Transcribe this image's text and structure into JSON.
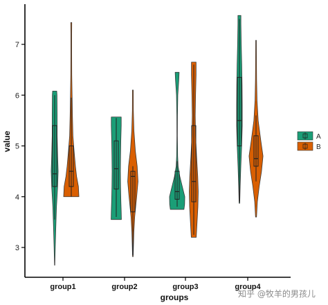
{
  "chart_data": {
    "type": "violin",
    "title": "",
    "xlabel": "groups",
    "ylabel": "value",
    "ylim": [
      2.6,
      7.65
    ],
    "yticks": [
      3,
      4,
      5,
      6,
      7
    ],
    "categories": [
      "group1",
      "group2",
      "group3",
      "group4"
    ],
    "legend": {
      "placement": "right",
      "entries": [
        "A",
        "B"
      ]
    },
    "grid": false,
    "colors": {
      "A": "#1b9e77",
      "B": "#d95f02"
    },
    "series": [
      {
        "name": "A",
        "violins": [
          {
            "min": 2.65,
            "max": 6.08,
            "q1": 4.2,
            "median": 4.45,
            "q3": 5.4,
            "whisker_low": 3.55,
            "whisker_high": 6.0,
            "density": [
              [
                2.65,
                0.02
              ],
              [
                3.0,
                0.07
              ],
              [
                3.4,
                0.14
              ],
              [
                3.8,
                0.22
              ],
              [
                4.2,
                0.36
              ],
              [
                4.5,
                0.42
              ],
              [
                4.8,
                0.36
              ],
              [
                5.2,
                0.3
              ],
              [
                5.6,
                0.3
              ],
              [
                6.0,
                0.28
              ],
              [
                6.08,
                0.25
              ]
            ]
          },
          {
            "min": 3.55,
            "max": 5.57,
            "q1": 4.15,
            "median": 4.55,
            "q3": 5.1,
            "whisker_low": 3.6,
            "whisker_high": 5.55,
            "density": [
              [
                3.55,
                0.62
              ],
              [
                3.7,
                0.6
              ],
              [
                3.9,
                0.56
              ],
              [
                4.2,
                0.52
              ],
              [
                4.5,
                0.5
              ],
              [
                4.8,
                0.52
              ],
              [
                5.1,
                0.55
              ],
              [
                5.4,
                0.6
              ],
              [
                5.57,
                0.6
              ]
            ]
          },
          {
            "min": 3.75,
            "max": 6.45,
            "q1": 3.95,
            "median": 4.1,
            "q3": 4.5,
            "whisker_low": 3.8,
            "whisker_high": 4.7,
            "density": [
              [
                3.75,
                0.82
              ],
              [
                3.85,
                0.9
              ],
              [
                4.0,
                0.92
              ],
              [
                4.2,
                0.62
              ],
              [
                4.4,
                0.32
              ],
              [
                4.6,
                0.12
              ],
              [
                4.8,
                0.06
              ],
              [
                5.2,
                0.03
              ],
              [
                5.6,
                0.04
              ],
              [
                6.0,
                0.08
              ],
              [
                6.3,
                0.2
              ],
              [
                6.45,
                0.24
              ]
            ]
          },
          {
            "min": 3.87,
            "max": 7.57,
            "q1": 5.0,
            "median": 5.5,
            "q3": 6.35,
            "whisker_low": 3.9,
            "whisker_high": 7.5,
            "density": [
              [
                3.87,
                0.04
              ],
              [
                4.2,
                0.09
              ],
              [
                4.6,
                0.17
              ],
              [
                5.0,
                0.27
              ],
              [
                5.4,
                0.34
              ],
              [
                5.8,
                0.34
              ],
              [
                6.2,
                0.32
              ],
              [
                6.6,
                0.28
              ],
              [
                7.0,
                0.22
              ],
              [
                7.4,
                0.18
              ],
              [
                7.57,
                0.18
              ]
            ]
          }
        ]
      },
      {
        "name": "B",
        "violins": [
          {
            "min": 4.0,
            "max": 7.43,
            "q1": 4.2,
            "median": 4.5,
            "q3": 5.0,
            "whisker_low": 4.0,
            "whisker_high": 5.95,
            "density": [
              [
                4.0,
                0.92
              ],
              [
                4.2,
                0.86
              ],
              [
                4.4,
                0.64
              ],
              [
                4.6,
                0.5
              ],
              [
                4.9,
                0.34
              ],
              [
                5.2,
                0.2
              ],
              [
                5.6,
                0.14
              ],
              [
                6.0,
                0.1
              ],
              [
                6.4,
                0.06
              ],
              [
                6.8,
                0.05
              ],
              [
                7.2,
                0.05
              ],
              [
                7.43,
                0.06
              ]
            ]
          },
          {
            "min": 2.82,
            "max": 6.1,
            "q1": 3.7,
            "median": 4.4,
            "q3": 4.5,
            "whisker_low": 2.85,
            "whisker_high": 4.6,
            "density": [
              [
                2.82,
                0.04
              ],
              [
                3.0,
                0.07
              ],
              [
                3.3,
                0.12
              ],
              [
                3.6,
                0.22
              ],
              [
                4.0,
                0.46
              ],
              [
                4.3,
                0.62
              ],
              [
                4.6,
                0.52
              ],
              [
                4.9,
                0.3
              ],
              [
                5.3,
                0.13
              ],
              [
                5.7,
                0.06
              ],
              [
                6.1,
                0.05
              ]
            ]
          },
          {
            "min": 3.2,
            "max": 6.65,
            "q1": 3.9,
            "median": 4.3,
            "q3": 5.4,
            "whisker_low": 3.25,
            "whisker_high": 6.6,
            "density": [
              [
                3.2,
                0.3
              ],
              [
                3.5,
                0.4
              ],
              [
                3.8,
                0.5
              ],
              [
                4.1,
                0.54
              ],
              [
                4.4,
                0.48
              ],
              [
                4.8,
                0.34
              ],
              [
                5.2,
                0.22
              ],
              [
                5.6,
                0.18
              ],
              [
                6.0,
                0.22
              ],
              [
                6.4,
                0.28
              ],
              [
                6.65,
                0.28
              ]
            ]
          },
          {
            "min": 3.6,
            "max": 7.08,
            "q1": 4.6,
            "median": 4.75,
            "q3": 5.2,
            "whisker_low": 4.3,
            "whisker_high": 5.6,
            "density": [
              [
                3.6,
                0.06
              ],
              [
                3.9,
                0.16
              ],
              [
                4.2,
                0.38
              ],
              [
                4.5,
                0.66
              ],
              [
                4.8,
                0.84
              ],
              [
                5.1,
                0.58
              ],
              [
                5.5,
                0.26
              ],
              [
                5.9,
                0.12
              ],
              [
                6.3,
                0.07
              ],
              [
                6.7,
                0.05
              ],
              [
                7.08,
                0.04
              ]
            ]
          }
        ]
      }
    ]
  },
  "watermark": {
    "text": "知乎 @牧羊的男孩儿"
  }
}
